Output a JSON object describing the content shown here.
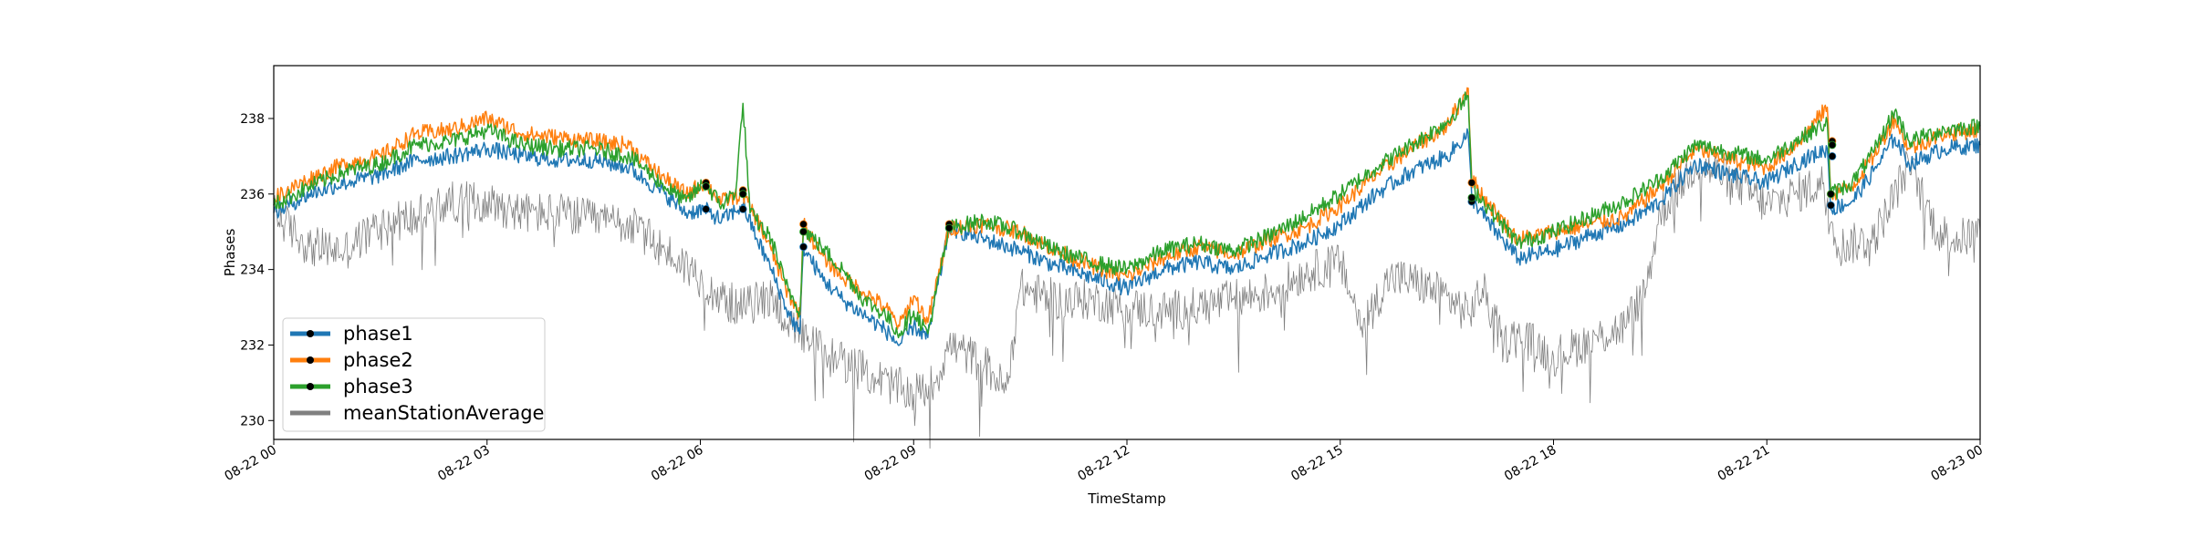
{
  "chart_data": {
    "type": "line",
    "title": "",
    "xlabel": "TimeStamp",
    "ylabel": "Phases",
    "x_ticks": [
      "08-22 00",
      "08-22 03",
      "08-22 06",
      "08-22 09",
      "08-22 12",
      "08-22 15",
      "08-22 18",
      "08-22 21",
      "08-23 00"
    ],
    "x_tick_hours": [
      0,
      3,
      6,
      9,
      12,
      15,
      18,
      21,
      24
    ],
    "xlim": [
      0,
      24
    ],
    "y_ticks": [
      230,
      232,
      234,
      236,
      238
    ],
    "ylim": [
      229.5,
      239.4
    ],
    "grid": false,
    "legend_position": "lower-left",
    "series": [
      {
        "name": "phase1",
        "color": "#1f77b4",
        "points": [
          [
            0,
            235.5
          ],
          [
            0.5,
            236.0
          ],
          [
            1,
            236.3
          ],
          [
            1.5,
            236.5
          ],
          [
            2,
            236.9
          ],
          [
            2.5,
            237.0
          ],
          [
            3,
            237.2
          ],
          [
            3.5,
            237.0
          ],
          [
            4,
            236.9
          ],
          [
            4.5,
            236.9
          ],
          [
            5,
            236.7
          ],
          [
            5.2,
            236.4
          ],
          [
            5.5,
            236.0
          ],
          [
            5.8,
            235.5
          ],
          [
            6.05,
            235.6
          ],
          [
            6.3,
            235.3
          ],
          [
            6.6,
            235.7
          ],
          [
            6.8,
            234.8
          ],
          [
            7,
            234.0
          ],
          [
            7.2,
            233.0
          ],
          [
            7.4,
            232.3
          ],
          [
            7.45,
            234.6
          ],
          [
            7.7,
            233.8
          ],
          [
            8,
            233.2
          ],
          [
            8.3,
            232.8
          ],
          [
            8.6,
            232.4
          ],
          [
            8.8,
            232.0
          ],
          [
            9,
            232.5
          ],
          [
            9.2,
            232.2
          ],
          [
            9.5,
            235.1
          ],
          [
            10,
            234.8
          ],
          [
            10.5,
            234.5
          ],
          [
            11,
            234.1
          ],
          [
            11.5,
            233.8
          ],
          [
            12,
            233.5
          ],
          [
            12.5,
            234.0
          ],
          [
            13,
            234.2
          ],
          [
            13.5,
            234.0
          ],
          [
            14,
            234.4
          ],
          [
            14.5,
            234.7
          ],
          [
            15,
            235.2
          ],
          [
            15.5,
            236.0
          ],
          [
            16,
            236.6
          ],
          [
            16.5,
            237.0
          ],
          [
            16.8,
            237.6
          ],
          [
            16.85,
            235.9
          ],
          [
            17.1,
            235.2
          ],
          [
            17.5,
            234.3
          ],
          [
            18,
            234.5
          ],
          [
            18.5,
            234.9
          ],
          [
            19,
            235.2
          ],
          [
            19.5,
            235.8
          ],
          [
            20,
            236.8
          ],
          [
            20.5,
            236.5
          ],
          [
            21,
            236.3
          ],
          [
            21.4,
            236.8
          ],
          [
            21.85,
            237.2
          ],
          [
            21.9,
            235.6
          ],
          [
            22.2,
            235.8
          ],
          [
            22.5,
            236.6
          ],
          [
            22.8,
            237.5
          ],
          [
            23,
            236.8
          ],
          [
            23.5,
            237.2
          ],
          [
            24,
            237.3
          ]
        ]
      },
      {
        "name": "phase2",
        "color": "#ff7f0e",
        "points": [
          [
            0,
            235.9
          ],
          [
            0.5,
            236.4
          ],
          [
            1,
            236.8
          ],
          [
            1.5,
            237.0
          ],
          [
            2,
            237.6
          ],
          [
            2.5,
            237.7
          ],
          [
            3,
            238.0
          ],
          [
            3.5,
            237.6
          ],
          [
            4,
            237.5
          ],
          [
            4.5,
            237.4
          ],
          [
            5,
            237.3
          ],
          [
            5.2,
            236.9
          ],
          [
            5.5,
            236.4
          ],
          [
            5.8,
            236.0
          ],
          [
            6.05,
            236.3
          ],
          [
            6.3,
            235.8
          ],
          [
            6.6,
            236.0
          ],
          [
            6.8,
            235.3
          ],
          [
            7,
            234.5
          ],
          [
            7.2,
            233.5
          ],
          [
            7.4,
            232.8
          ],
          [
            7.45,
            235.2
          ],
          [
            7.7,
            234.4
          ],
          [
            8,
            233.8
          ],
          [
            8.3,
            233.4
          ],
          [
            8.6,
            233.0
          ],
          [
            8.8,
            232.5
          ],
          [
            9,
            233.3
          ],
          [
            9.2,
            232.6
          ],
          [
            9.5,
            235.1
          ],
          [
            10,
            235.2
          ],
          [
            10.5,
            235.0
          ],
          [
            11,
            234.5
          ],
          [
            11.5,
            234.1
          ],
          [
            12,
            233.8
          ],
          [
            12.5,
            234.3
          ],
          [
            13,
            234.6
          ],
          [
            13.5,
            234.4
          ],
          [
            14,
            234.8
          ],
          [
            14.5,
            235.1
          ],
          [
            15,
            235.7
          ],
          [
            15.5,
            236.5
          ],
          [
            16,
            237.2
          ],
          [
            16.5,
            237.8
          ],
          [
            16.8,
            238.8
          ],
          [
            16.85,
            236.4
          ],
          [
            17.1,
            235.7
          ],
          [
            17.5,
            234.8
          ],
          [
            18,
            235.0
          ],
          [
            18.5,
            235.2
          ],
          [
            19,
            235.4
          ],
          [
            19.5,
            236.2
          ],
          [
            20,
            237.2
          ],
          [
            20.5,
            236.9
          ],
          [
            21,
            236.7
          ],
          [
            21.4,
            237.3
          ],
          [
            21.85,
            238.3
          ],
          [
            21.9,
            236.0
          ],
          [
            22.2,
            236.2
          ],
          [
            22.5,
            237.0
          ],
          [
            22.8,
            238.0
          ],
          [
            23,
            237.2
          ],
          [
            23.5,
            237.6
          ],
          [
            24,
            237.7
          ]
        ]
      },
      {
        "name": "phase3",
        "color": "#2ca02c",
        "points": [
          [
            0,
            235.7
          ],
          [
            0.5,
            236.2
          ],
          [
            1,
            236.6
          ],
          [
            1.5,
            236.8
          ],
          [
            2,
            237.3
          ],
          [
            2.5,
            237.4
          ],
          [
            3,
            237.7
          ],
          [
            3.5,
            237.3
          ],
          [
            4,
            237.2
          ],
          [
            4.5,
            237.2
          ],
          [
            5,
            237.0
          ],
          [
            5.2,
            236.7
          ],
          [
            5.5,
            236.2
          ],
          [
            5.8,
            235.8
          ],
          [
            6.05,
            236.3
          ],
          [
            6.3,
            235.7
          ],
          [
            6.5,
            236.1
          ],
          [
            6.6,
            238.4
          ],
          [
            6.7,
            235.5
          ],
          [
            7,
            234.8
          ],
          [
            7.2,
            233.6
          ],
          [
            7.4,
            232.9
          ],
          [
            7.45,
            235.1
          ],
          [
            7.7,
            234.6
          ],
          [
            8,
            234.0
          ],
          [
            8.3,
            233.2
          ],
          [
            8.6,
            232.8
          ],
          [
            8.8,
            232.3
          ],
          [
            9,
            232.9
          ],
          [
            9.2,
            232.3
          ],
          [
            9.5,
            235.1
          ],
          [
            10,
            235.3
          ],
          [
            10.5,
            235.0
          ],
          [
            11,
            234.5
          ],
          [
            11.5,
            234.2
          ],
          [
            12,
            234.0
          ],
          [
            12.5,
            234.5
          ],
          [
            13,
            234.7
          ],
          [
            13.5,
            234.5
          ],
          [
            14,
            234.9
          ],
          [
            14.5,
            235.4
          ],
          [
            15,
            236.0
          ],
          [
            15.5,
            236.7
          ],
          [
            16,
            237.3
          ],
          [
            16.5,
            237.9
          ],
          [
            16.8,
            238.6
          ],
          [
            16.85,
            236.2
          ],
          [
            17.1,
            235.6
          ],
          [
            17.5,
            234.7
          ],
          [
            18,
            235.0
          ],
          [
            18.5,
            235.4
          ],
          [
            19,
            235.8
          ],
          [
            19.5,
            236.4
          ],
          [
            20,
            237.3
          ],
          [
            20.5,
            237.1
          ],
          [
            21,
            236.9
          ],
          [
            21.4,
            237.4
          ],
          [
            21.85,
            237.9
          ],
          [
            21.9,
            236.0
          ],
          [
            22.2,
            236.3
          ],
          [
            22.5,
            237.1
          ],
          [
            22.8,
            238.2
          ],
          [
            23,
            237.4
          ],
          [
            23.5,
            237.7
          ],
          [
            24,
            237.8
          ]
        ]
      },
      {
        "name": "meanStationAverage",
        "color": "#808080",
        "points": [
          [
            0,
            235.5
          ],
          [
            0.5,
            234.6
          ],
          [
            1,
            234.5
          ],
          [
            1.5,
            235.2
          ],
          [
            2,
            235.4
          ],
          [
            2.5,
            235.8
          ],
          [
            3,
            235.8
          ],
          [
            3.5,
            235.5
          ],
          [
            4,
            235.5
          ],
          [
            4.5,
            235.3
          ],
          [
            5,
            235.2
          ],
          [
            5.5,
            234.5
          ],
          [
            6,
            233.8
          ],
          [
            6.3,
            233.2
          ],
          [
            6.6,
            233.0
          ],
          [
            7,
            233.3
          ],
          [
            7.3,
            232.4
          ],
          [
            7.5,
            232.1
          ],
          [
            8,
            231.6
          ],
          [
            8.5,
            231.1
          ],
          [
            9,
            230.7
          ],
          [
            9.3,
            231.0
          ],
          [
            9.5,
            232.0
          ],
          [
            10,
            231.5
          ],
          [
            10.3,
            230.8
          ],
          [
            10.5,
            233.5
          ],
          [
            11,
            233.2
          ],
          [
            11.5,
            233.2
          ],
          [
            12,
            233.0
          ],
          [
            12.5,
            232.9
          ],
          [
            13,
            233.0
          ],
          [
            13.5,
            233.2
          ],
          [
            14,
            233.4
          ],
          [
            14.5,
            233.9
          ],
          [
            15,
            234.2
          ],
          [
            15.3,
            232.5
          ],
          [
            15.7,
            233.8
          ],
          [
            16,
            233.7
          ],
          [
            16.5,
            233.3
          ],
          [
            16.8,
            232.8
          ],
          [
            17,
            233.5
          ],
          [
            17.3,
            232.0
          ],
          [
            17.5,
            232.3
          ],
          [
            18,
            231.7
          ],
          [
            18.5,
            232.1
          ],
          [
            19,
            232.5
          ],
          [
            19.3,
            233.5
          ],
          [
            19.5,
            235.5
          ],
          [
            20,
            236.8
          ],
          [
            20.5,
            236.4
          ],
          [
            21,
            235.7
          ],
          [
            21.4,
            236.0
          ],
          [
            21.8,
            236.3
          ],
          [
            22,
            234.6
          ],
          [
            22.5,
            234.8
          ],
          [
            23,
            236.8
          ],
          [
            23.4,
            235.0
          ],
          [
            23.7,
            234.8
          ],
          [
            24,
            235.0
          ]
        ]
      }
    ],
    "markers": [
      {
        "series": "phase1",
        "x": 6.08,
        "y": 235.6
      },
      {
        "series": "phase2",
        "x": 6.08,
        "y": 236.3
      },
      {
        "series": "phase3",
        "x": 6.08,
        "y": 236.2
      },
      {
        "series": "phase1",
        "x": 6.6,
        "y": 235.6
      },
      {
        "series": "phase2",
        "x": 6.6,
        "y": 236.1
      },
      {
        "series": "phase3",
        "x": 6.6,
        "y": 236.0
      },
      {
        "series": "phase1",
        "x": 7.45,
        "y": 234.6
      },
      {
        "series": "phase2",
        "x": 7.45,
        "y": 235.2
      },
      {
        "series": "phase3",
        "x": 7.45,
        "y": 235.0
      },
      {
        "series": "phase1",
        "x": 9.5,
        "y": 235.1
      },
      {
        "series": "phase2",
        "x": 9.5,
        "y": 235.2
      },
      {
        "series": "phase3",
        "x": 9.5,
        "y": 235.1
      },
      {
        "series": "phase1",
        "x": 16.85,
        "y": 235.8
      },
      {
        "series": "phase2",
        "x": 16.85,
        "y": 236.3
      },
      {
        "series": "phase3",
        "x": 16.85,
        "y": 235.9
      },
      {
        "series": "phase1",
        "x": 21.9,
        "y": 235.7
      },
      {
        "series": "phase2",
        "x": 21.9,
        "y": 236.0
      },
      {
        "series": "phase3",
        "x": 21.9,
        "y": 236.0
      },
      {
        "series": "phase1",
        "x": 21.92,
        "y": 237.0
      },
      {
        "series": "phase2",
        "x": 21.92,
        "y": 237.4
      },
      {
        "series": "phase3",
        "x": 21.92,
        "y": 237.3
      }
    ]
  }
}
